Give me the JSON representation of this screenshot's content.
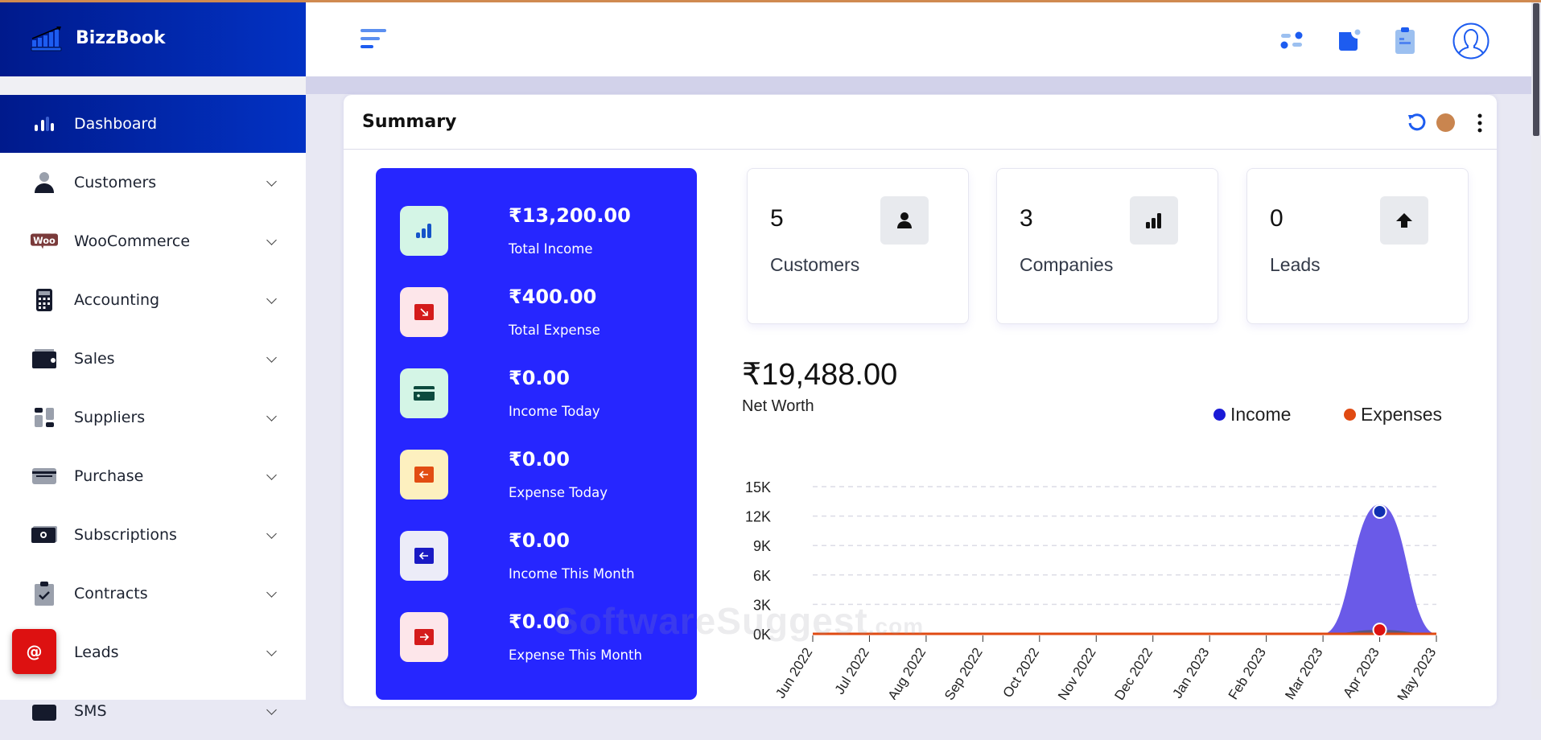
{
  "app": {
    "name": "BizzBook"
  },
  "sidebar": {
    "items": [
      {
        "label": "Dashboard",
        "icon": "bar-chart-icon",
        "active": true
      },
      {
        "label": "Customers",
        "icon": "person-icon"
      },
      {
        "label": "WooCommerce",
        "icon": "woocommerce-icon",
        "icon_text": "Woo"
      },
      {
        "label": "Accounting",
        "icon": "calculator-icon"
      },
      {
        "label": "Sales",
        "icon": "wallet-icon"
      },
      {
        "label": "Suppliers",
        "icon": "grid-icon"
      },
      {
        "label": "Purchase",
        "icon": "card-icon"
      },
      {
        "label": "Subscriptions",
        "icon": "money-icon"
      },
      {
        "label": "Contracts",
        "icon": "clipboard-check-icon"
      },
      {
        "label": "Leads",
        "icon": "leads-icon"
      },
      {
        "label": "SMS",
        "icon": "sms-icon"
      }
    ]
  },
  "fab": {
    "label": "@"
  },
  "summary": {
    "title": "Summary",
    "panel": [
      {
        "value": "₹13,200.00",
        "label": "Total Income",
        "bg": "#d4f5e6",
        "fg": "#1553c9"
      },
      {
        "value": "₹400.00",
        "label": "Total Expense",
        "bg": "#fde6ea",
        "fg": "#d41b1b"
      },
      {
        "value": "₹0.00",
        "label": "Income Today",
        "bg": "#d4f5e6",
        "fg": "#0c4a3e"
      },
      {
        "value": "₹0.00",
        "label": "Expense Today",
        "bg": "#fdf0bf",
        "fg": "#e24d12"
      },
      {
        "value": "₹0.00",
        "label": "Income This Month",
        "bg": "#ececf8",
        "fg": "#1a1ac4"
      },
      {
        "value": "₹0.00",
        "label": "Expense This Month",
        "bg": "#fde6ea",
        "fg": "#d41b1b"
      }
    ],
    "stats": [
      {
        "value": "5",
        "label": "Customers",
        "icon": "person-icon"
      },
      {
        "value": "3",
        "label": "Companies",
        "icon": "bar-chart-icon"
      },
      {
        "value": "0",
        "label": "Leads",
        "icon": "arrow-up-icon"
      }
    ],
    "net_worth": {
      "value": "₹19,488.00",
      "label": "Net Worth"
    }
  },
  "watermark": {
    "text": "SoftwareSuggest",
    "suffix": ".com"
  },
  "chart_data": {
    "type": "area",
    "categories": [
      "Jun 2022",
      "Jul 2022",
      "Aug 2022",
      "Sep 2022",
      "Oct 2022",
      "Nov 2022",
      "Dec 2022",
      "Jan 2023",
      "Feb 2023",
      "Mar 2023",
      "Apr 2023",
      "May 2023"
    ],
    "series": [
      {
        "name": "Income",
        "color": "#1a1ad6",
        "fill": "#6a5ae8",
        "values": [
          0,
          0,
          0,
          0,
          0,
          0,
          0,
          0,
          0,
          0,
          13200,
          0
        ]
      },
      {
        "name": "Expenses",
        "color": "#e04a12",
        "fill": "#555566",
        "values": [
          0,
          0,
          0,
          0,
          0,
          0,
          0,
          0,
          0,
          0,
          400,
          0
        ]
      }
    ],
    "yticks": [
      "0K",
      "3K",
      "6K",
      "9K",
      "12K",
      "15K"
    ],
    "ylim": [
      0,
      15000
    ],
    "grid": true,
    "legend": "top-right"
  }
}
